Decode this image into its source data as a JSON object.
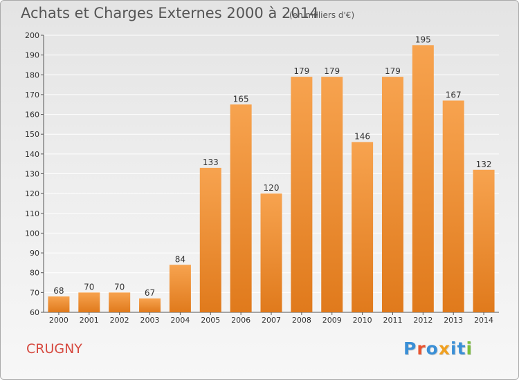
{
  "header": {
    "title": "Achats et Charges Externes 2000 à 2014",
    "subtitle": "(en milliers d'€)"
  },
  "footer": {
    "commune": "CRUGNY",
    "logo_text": "Proxiti",
    "logo_colors": [
      "#3a8fd6",
      "#e8532f",
      "#3a8fd6",
      "#f0a020",
      "#3a8fd6",
      "#3a8fd6",
      "#7bbf3a"
    ]
  },
  "colors": {
    "bar_top": "#f7a34f",
    "bar_bottom": "#e07a1c",
    "grid": "#ffffff",
    "axis": "#555555",
    "commune_text": "#d6493f"
  },
  "chart_data": {
    "type": "bar",
    "title": "Achats et Charges Externes 2000 à 2014",
    "subtitle": "(en milliers d'€)",
    "xlabel": "",
    "ylabel": "",
    "categories": [
      "2000",
      "2001",
      "2002",
      "2003",
      "2004",
      "2005",
      "2006",
      "2007",
      "2008",
      "2009",
      "2010",
      "2011",
      "2012",
      "2013",
      "2014"
    ],
    "values": [
      68,
      70,
      70,
      67,
      84,
      133,
      165,
      120,
      179,
      179,
      146,
      179,
      195,
      167,
      132
    ],
    "ylim": [
      60,
      200
    ],
    "yticks": [
      60,
      70,
      80,
      90,
      100,
      110,
      120,
      130,
      140,
      150,
      160,
      170,
      180,
      190,
      200
    ],
    "grid": true,
    "legend": "none"
  }
}
